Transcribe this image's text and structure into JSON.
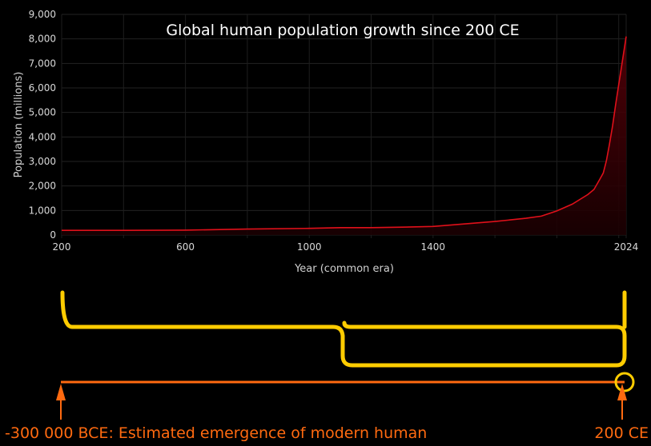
{
  "chart_data": {
    "type": "area",
    "title": "Global human population growth since 200 CE",
    "xlabel": "Year (common era)",
    "ylabel": "Population (millions)",
    "xlim": [
      200,
      2024
    ],
    "ylim": [
      0,
      9000
    ],
    "x_ticks": [
      200,
      600,
      1000,
      1400,
      2024
    ],
    "y_ticks": [
      0,
      1000,
      2000,
      3000,
      4000,
      5000,
      6000,
      7000,
      8000,
      9000
    ],
    "y_tick_labels": [
      "0",
      "1,000",
      "2,000",
      "3,000",
      "4,000",
      "5,000",
      "6,000",
      "7,000",
      "8,000",
      "9,000"
    ],
    "grid": true,
    "legend": "none",
    "series": [
      {
        "color": "#e0101a",
        "x": [
          200,
          400,
          600,
          800,
          1000,
          1100,
          1200,
          1300,
          1400,
          1500,
          1600,
          1700,
          1750,
          1800,
          1850,
          1900,
          1920,
          1940,
          1950,
          1960,
          1970,
          1980,
          1990,
          2000,
          2010,
          2024
        ],
        "y": [
          190,
          190,
          200,
          240,
          270,
          300,
          300,
          320,
          350,
          450,
          550,
          680,
          770,
          980,
          1260,
          1650,
          1860,
          2300,
          2530,
          3030,
          3700,
          4450,
          5330,
          6140,
          6960,
          8100
        ]
      }
    ]
  },
  "timeline": {
    "start_label": "-300 000 BCE: Estimated emergence of modern human",
    "end_label": "200 CE",
    "brace_color": "#ffcc00",
    "line_color": "#ff6a10"
  }
}
